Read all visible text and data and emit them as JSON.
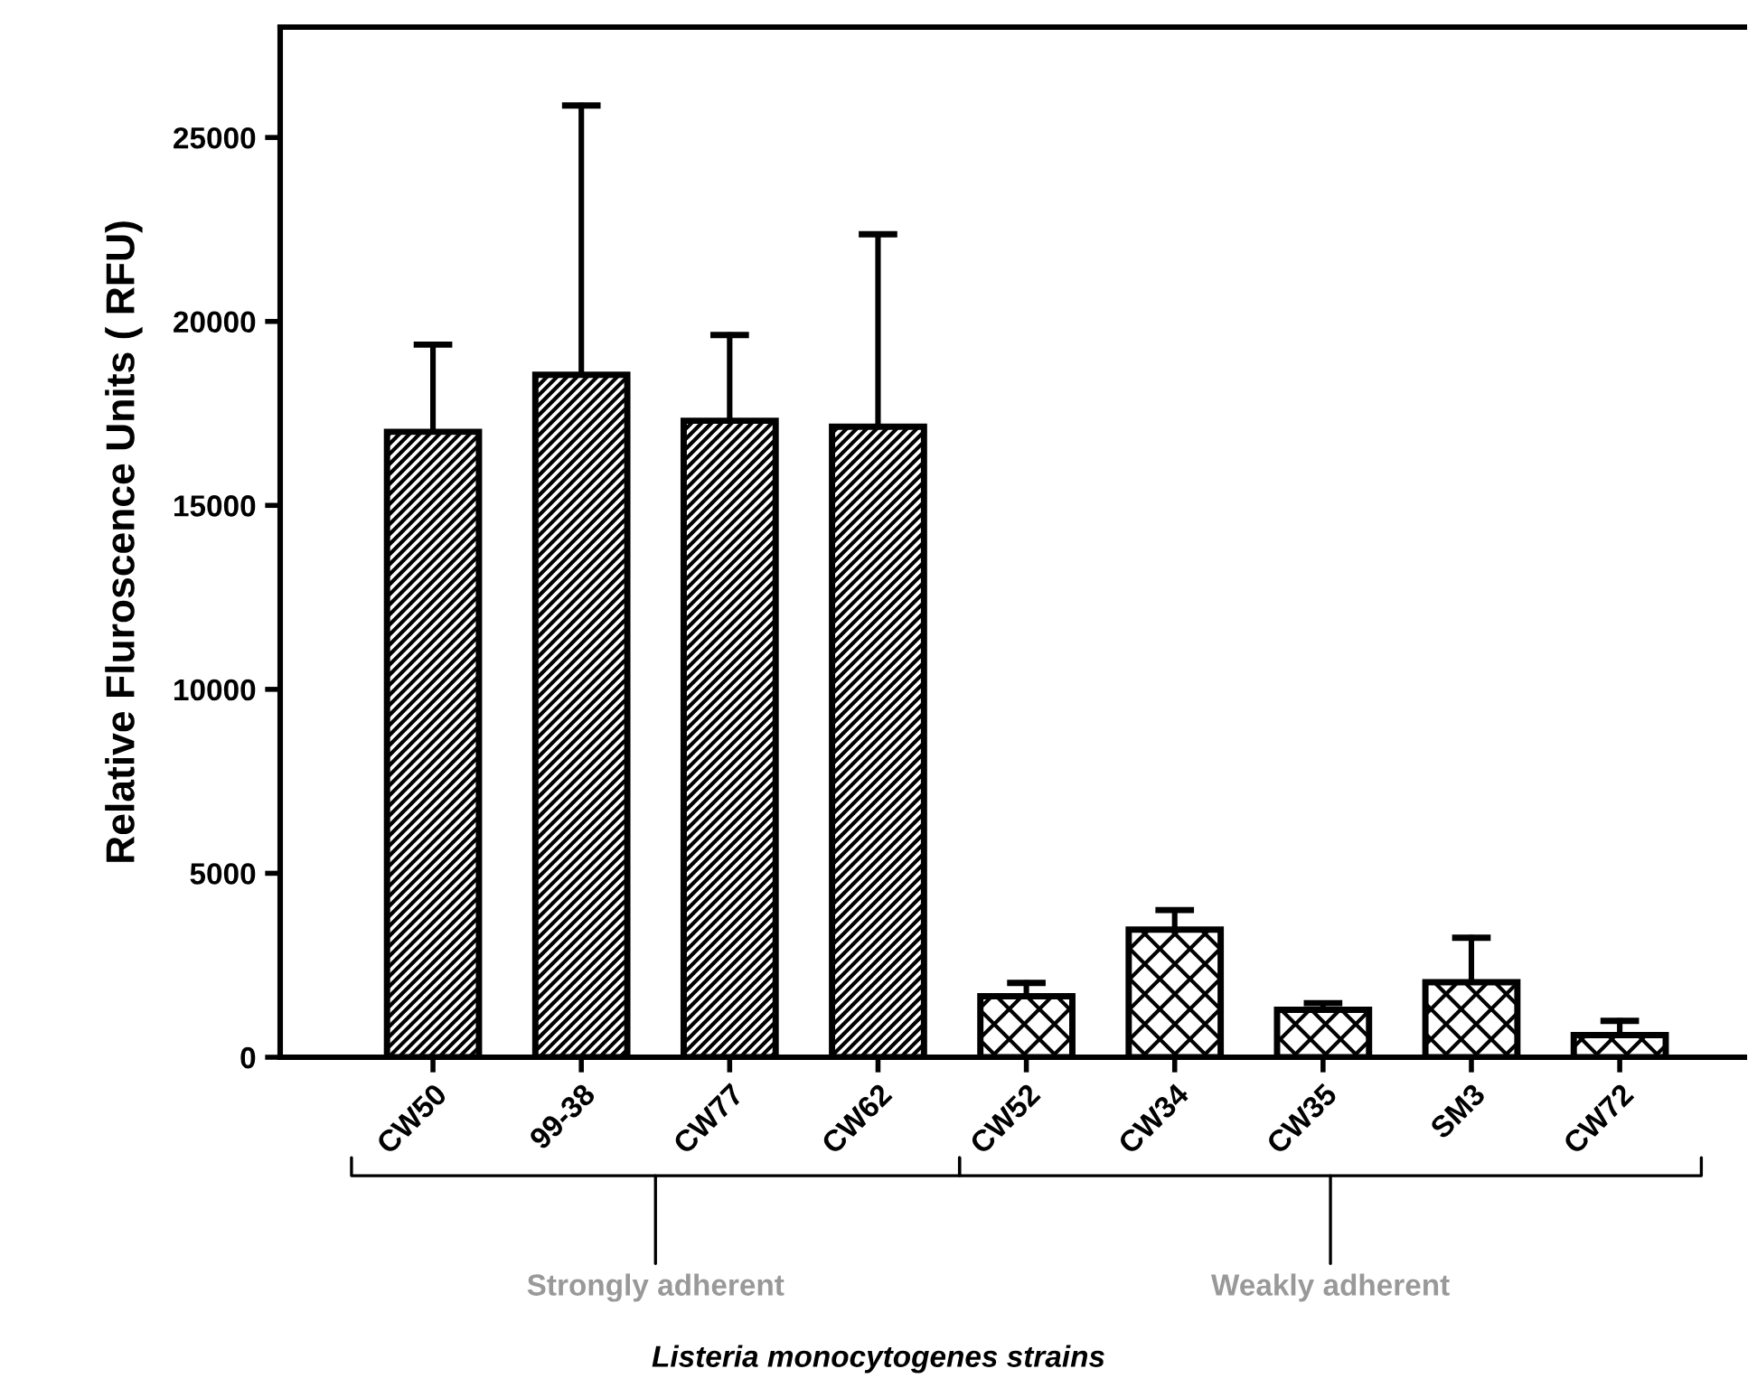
{
  "chart_data": {
    "type": "bar",
    "ylabel": "Relative Fluroscence Units ( RFU)",
    "categories": [
      "CW50",
      "99-38",
      "CW77",
      "CW62",
      "CW52",
      "CW34",
      "CW35",
      "SM3",
      "CW72"
    ],
    "series": [
      {
        "color": "#000000",
        "values": [
          17000,
          18550,
          17300,
          17140,
          null,
          null,
          null,
          null,
          null
        ],
        "errors": [
          [
            17000,
            19370
          ],
          [
            18550,
            25870
          ],
          [
            17300,
            19630
          ],
          [
            17140,
            22370
          ],
          null,
          null,
          null,
          null,
          null
        ]
      },
      {
        "color": "#000000",
        "values": [
          null,
          null,
          null,
          null,
          1660,
          3470,
          1290,
          2040,
          600
        ],
        "errors": [
          null,
          null,
          null,
          null,
          [
            1660,
            2020
          ],
          [
            3470,
            4000
          ],
          [
            1290,
            1470
          ],
          [
            2040,
            3250
          ],
          [
            600,
            990
          ]
        ]
      }
    ],
    "annotations": [
      "Strongly adherent",
      "Weakly adherent",
      "Listeria monocytogenes strains"
    ],
    "ylim": [
      0,
      28000
    ],
    "yticks": [
      0,
      5000,
      10000,
      15000,
      20000,
      25000
    ],
    "grid": false,
    "legend": false
  }
}
